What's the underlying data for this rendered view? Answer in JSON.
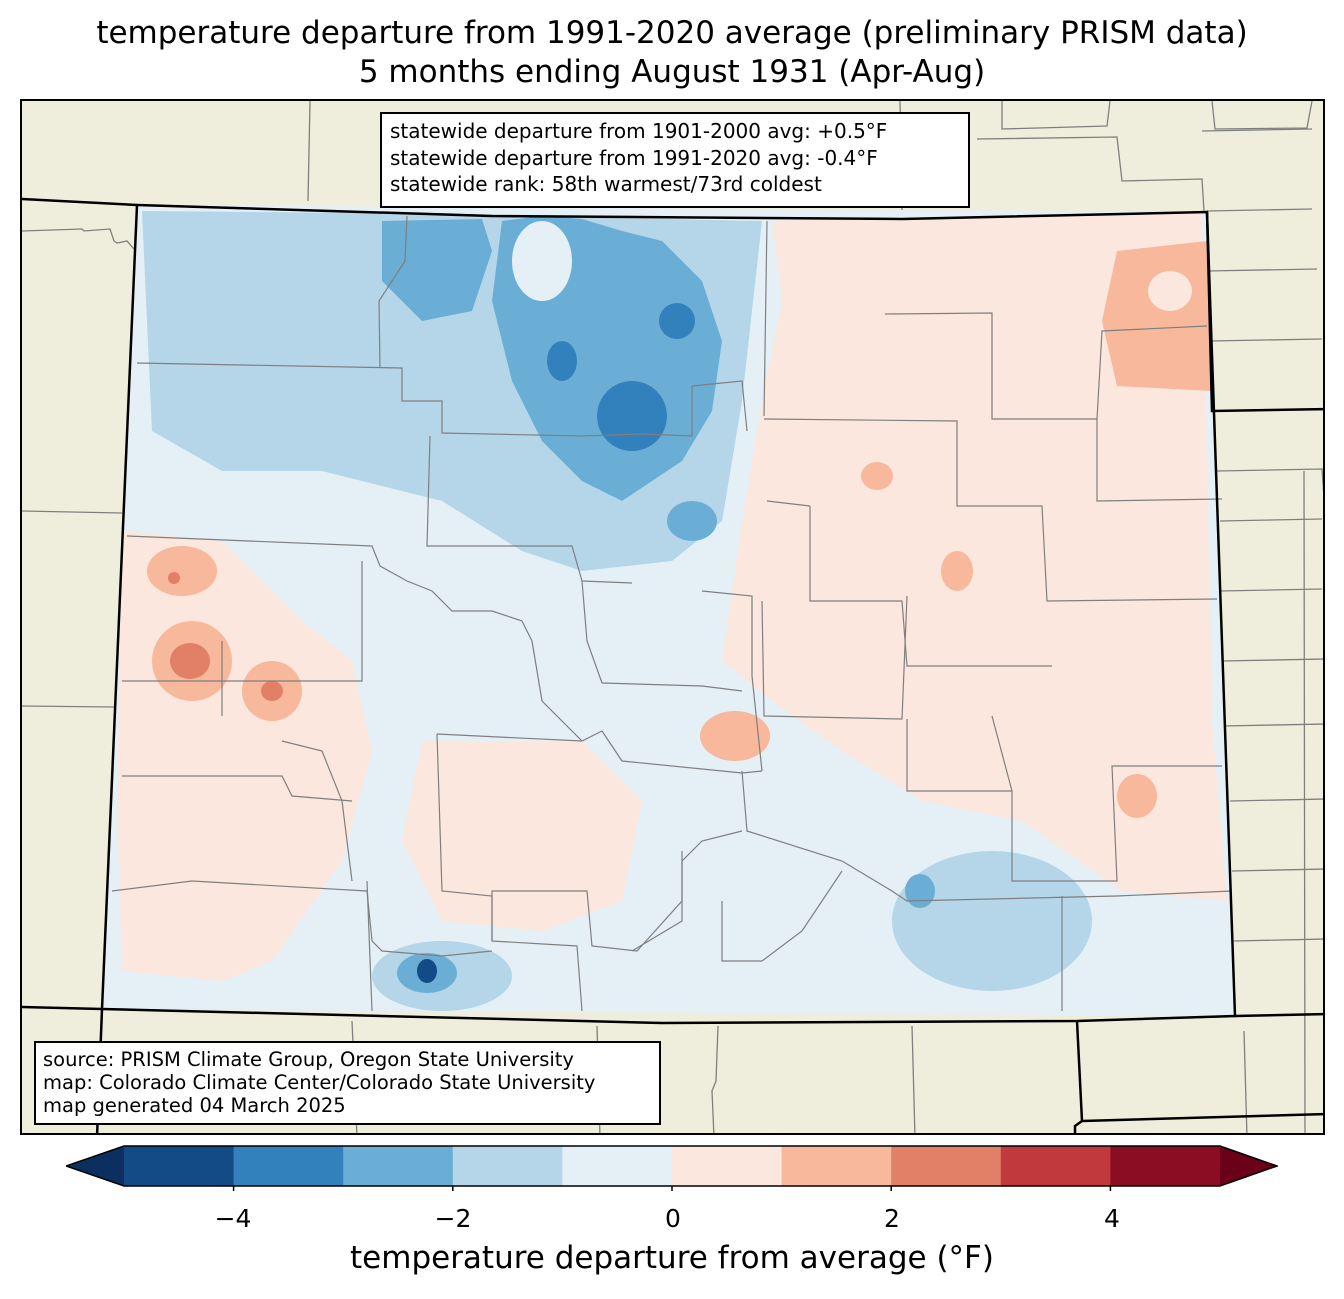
{
  "title_line1": "temperature departure from 1991-2020 average (preliminary PRISM data)",
  "title_line2": "5 months ending August 1931 (Apr-Aug)",
  "stats": [
    "statewide departure from 1901-2000 avg: +0.5°F",
    "statewide departure from 1991-2020 avg: -0.4°F",
    "statewide rank: 58th warmest/73rd coldest"
  ],
  "source": [
    "source: PRISM Climate Group, Oregon State University",
    "map: Colorado Climate Center/Colorado State University",
    "map generated 04 March 2025"
  ],
  "colorbar": {
    "label": "temperature departure from average (°F)",
    "ticks": [
      "−4",
      "−2",
      "0",
      "2",
      "4"
    ],
    "bins": [
      -5,
      -4,
      -3,
      -2,
      -1,
      0,
      1,
      2,
      3,
      4,
      5
    ],
    "colors": [
      "#134b87",
      "#3381bc",
      "#6aaed6",
      "#b4d6e8",
      "#e5eff6",
      "#fbe7dd",
      "#f7b89c",
      "#e27f67",
      "#c0393d",
      "#8a0d23"
    ],
    "under_color": "#0b2f5e",
    "over_color": "#6b0018"
  },
  "map_colors": {
    "background": "#efeedd",
    "boundary": "#7f7f7f",
    "state_outline": "#000000"
  }
}
